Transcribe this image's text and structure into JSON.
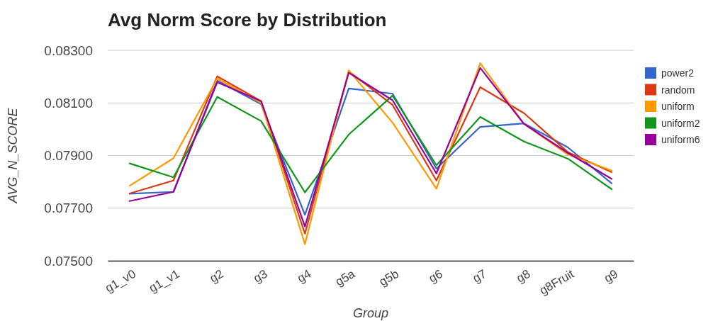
{
  "chart_data": {
    "type": "line",
    "title": "Avg Norm Score by Distribution",
    "xlabel": "Group",
    "ylabel": "AVG_N_SCORE",
    "categories": [
      "g1_v0",
      "g1_v1",
      "g2",
      "g3",
      "g4",
      "g5a",
      "g5b",
      "g6",
      "g7",
      "g8",
      "g8Fruit",
      "g9"
    ],
    "series": [
      {
        "name": "power2",
        "color": "#3366cc",
        "values": [
          0.07755,
          0.07762,
          0.08185,
          0.08095,
          0.07675,
          0.08155,
          0.08135,
          0.0785,
          0.08009,
          0.08022,
          0.07931,
          0.07794
        ]
      },
      {
        "name": "random",
        "color": "#dc3912",
        "values": [
          0.07756,
          0.07805,
          0.08201,
          0.08107,
          0.07603,
          0.0822,
          0.08092,
          0.07805,
          0.0816,
          0.08061,
          0.07913,
          0.07837
        ]
      },
      {
        "name": "uniform",
        "color": "#ff9900",
        "values": [
          0.07785,
          0.0789,
          0.08193,
          0.081,
          0.07563,
          0.08224,
          0.08025,
          0.07774,
          0.08251,
          0.0802,
          0.07904,
          0.07843
        ]
      },
      {
        "name": "uniform2",
        "color": "#109618",
        "values": [
          0.0787,
          0.07817,
          0.08123,
          0.08031,
          0.0776,
          0.0798,
          0.08128,
          0.07863,
          0.08047,
          0.07953,
          0.07888,
          0.07772
        ]
      },
      {
        "name": "uniform6",
        "color": "#990099",
        "values": [
          0.07727,
          0.07762,
          0.08179,
          0.08107,
          0.0763,
          0.08215,
          0.0811,
          0.07832,
          0.08233,
          0.0802,
          0.0791,
          0.07811
        ]
      }
    ],
    "ylim": [
      0.075,
      0.083
    ],
    "yticks": [
      {
        "value": 0.075,
        "label": "0.07500"
      },
      {
        "value": 0.077,
        "label": "0.07700"
      },
      {
        "value": 0.079,
        "label": "0.07900"
      },
      {
        "value": 0.081,
        "label": "0.08100"
      },
      {
        "value": 0.083,
        "label": "0.08300"
      }
    ],
    "grid": "y",
    "legend": "right",
    "marker": "none",
    "line_style": "solid"
  }
}
